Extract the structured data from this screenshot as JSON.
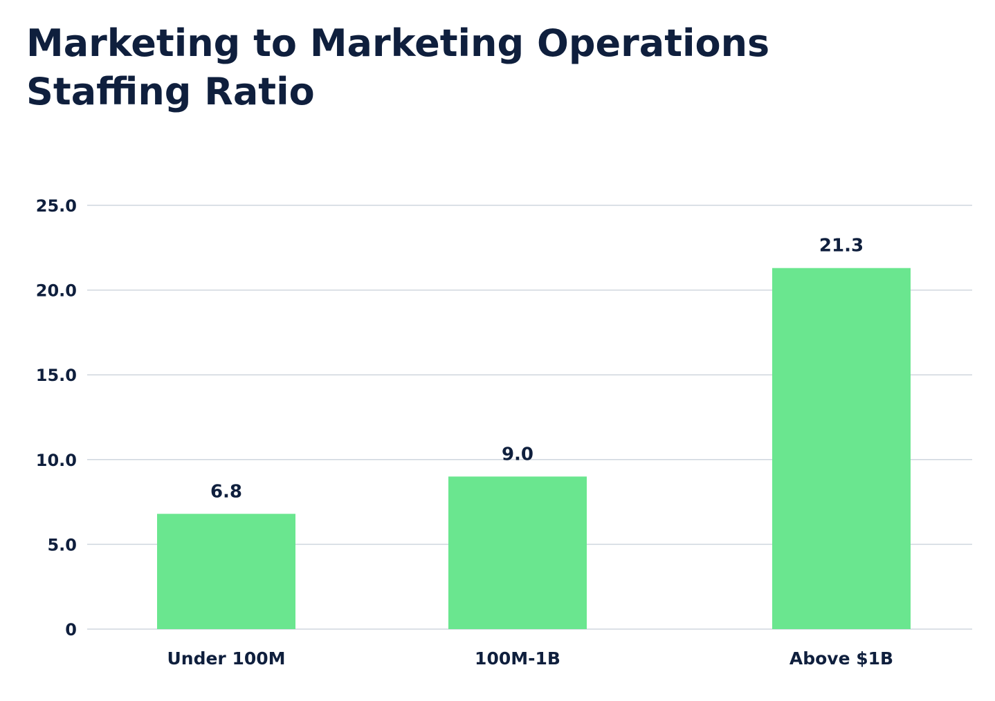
{
  "chart_data": {
    "type": "bar",
    "title_lines": [
      "Marketing to Marketing Operations",
      "Staffing Ratio"
    ],
    "categories": [
      "Under 100M",
      "100M-1B",
      "Above $1B"
    ],
    "values": [
      6.8,
      9.0,
      21.3
    ],
    "data_labels": [
      "6.8",
      "9.0",
      "21.3"
    ],
    "y_ticks": [
      {
        "value": 0,
        "label": "0"
      },
      {
        "value": 5,
        "label": "5.0"
      },
      {
        "value": 10,
        "label": "10.0"
      },
      {
        "value": 15,
        "label": "15.0"
      },
      {
        "value": 20,
        "label": "20.0"
      },
      {
        "value": 25,
        "label": "25.0"
      }
    ],
    "ylim": [
      0,
      25
    ],
    "grid": true,
    "legend": "none",
    "colors": {
      "bar": "#6ae68f",
      "grid": "#cfd6de",
      "text": "#0f1f3d"
    }
  }
}
